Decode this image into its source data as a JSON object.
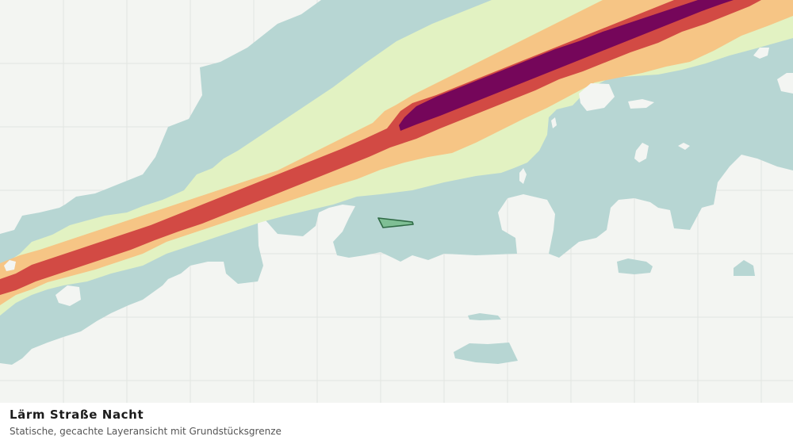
{
  "caption": {
    "title": "Lärm Straße Nacht",
    "subtitle": "Statische, gecachte Layeransicht mit Grundstücksgrenze"
  },
  "map": {
    "layer": "noise-road-night",
    "colors": {
      "background": "#f3f5f2",
      "grid": "#e2e5e1",
      "level_1": "#b7d6d3",
      "level_2": "#e2f2c2",
      "level_3": "#f6c585",
      "level_4": "#d24a44",
      "level_5": "#75065a",
      "parcel_fill": "#7fbf95",
      "parcel_stroke": "#2f6a45"
    },
    "icons": {
      "parcel": "parcel-boundary-icon"
    }
  }
}
